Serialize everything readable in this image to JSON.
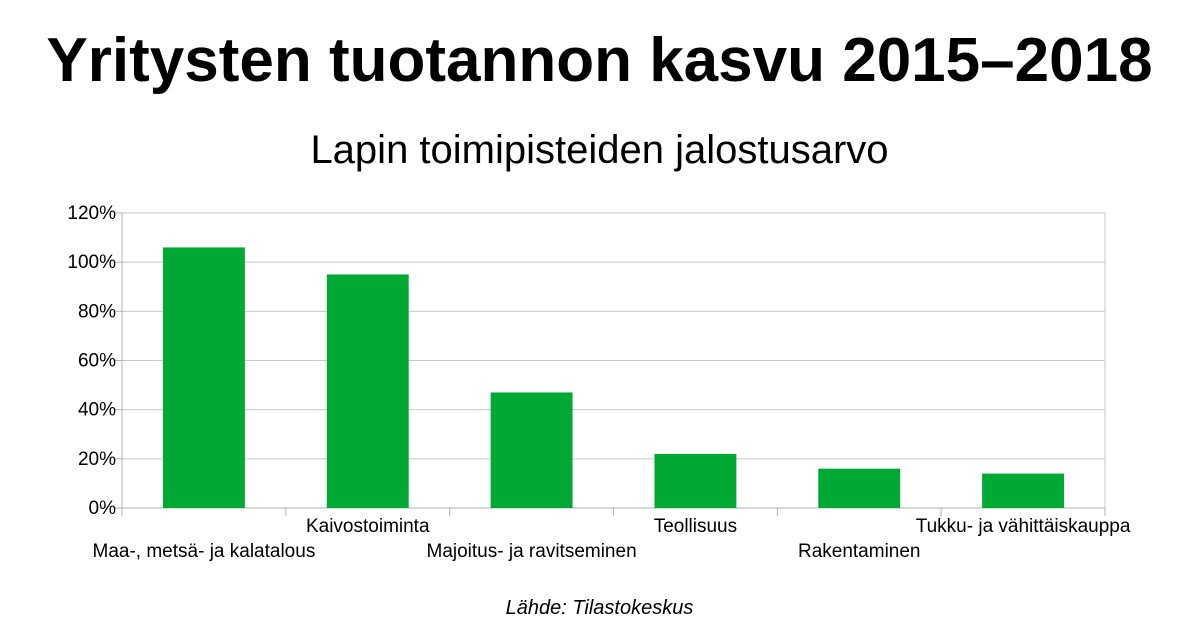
{
  "header": {
    "title": "Yritysten tuotannon kasvu 2015–2018",
    "subtitle": "Lapin toimipisteiden jalostusarvo"
  },
  "footer": {
    "source": "Lähde: Tilastokeskus"
  },
  "colors": {
    "bar": "#00a933",
    "grid": "#c8c8c8",
    "axis": "#b3b3b3"
  },
  "chart_data": {
    "type": "bar",
    "title": "Yritysten tuotannon kasvu 2015–2018",
    "subtitle": "Lapin toimipisteiden jalostusarvo",
    "categories": [
      "Maa-, metsä- ja kalatalous",
      "Kaivostoiminta",
      "Majoitus- ja ravitseminen",
      "Teollisuus",
      "Rakentaminen",
      "Tukku- ja vähittäiskauppa"
    ],
    "values": [
      106,
      95,
      47,
      22,
      16,
      14
    ],
    "value_unit": "%",
    "ylim": [
      0,
      120
    ],
    "yticks": [
      0,
      20,
      40,
      60,
      80,
      100,
      120
    ],
    "ytick_labels": [
      "0%",
      "20%",
      "40%",
      "60%",
      "80%",
      "100%",
      "120%"
    ],
    "xlabel": "",
    "ylabel": "",
    "grid": true,
    "legend": "none"
  }
}
